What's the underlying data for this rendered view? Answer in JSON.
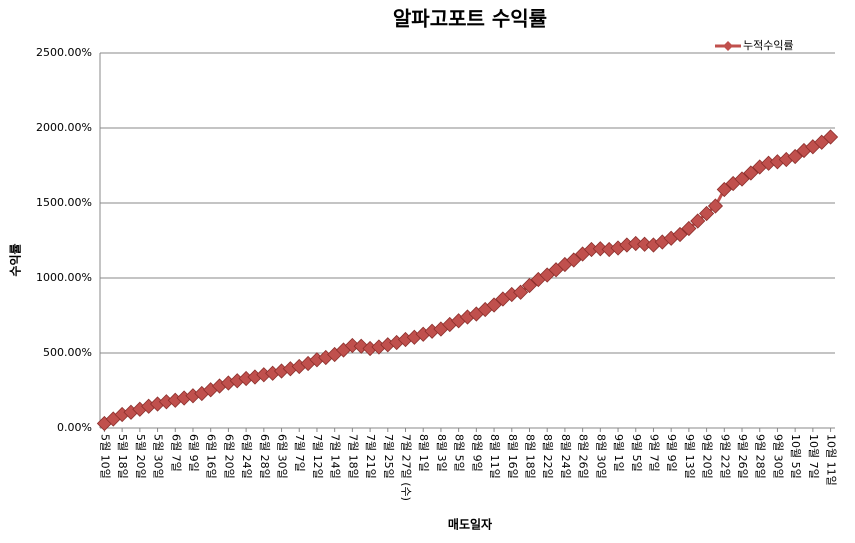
{
  "chart_data": {
    "type": "line",
    "title": "알파고포트 수익률",
    "x_label": "매도일자",
    "y_label": "수익률",
    "categories": [
      "5월 10일",
      null,
      "5월 18일",
      null,
      "5월 20일",
      null,
      "5월 30일",
      null,
      "6월 7일",
      null,
      "6월 9일",
      null,
      "6월 16일",
      null,
      "6월 20일",
      null,
      "6월 24일",
      null,
      "6월 28일",
      null,
      "6월 30일",
      null,
      "7월 7일",
      null,
      "7월 12일",
      null,
      "7월 14일",
      null,
      "7월 18일",
      null,
      "7월 21일",
      null,
      "7월 25일",
      null,
      "7월 27일 (수)",
      null,
      "8월 1일",
      null,
      "8월 3일",
      null,
      "8월 5일",
      null,
      "8월 9일",
      null,
      "8월 11일",
      null,
      "8월 16일",
      null,
      "8월 18일",
      null,
      "8월 22일",
      null,
      "8월 24일",
      null,
      "8월 26일",
      null,
      "8월 30일",
      null,
      "9월 1일",
      null,
      "9월 5일",
      null,
      "9월 7일",
      null,
      "9월 9일",
      null,
      "9월 13일",
      null,
      "9월 20일",
      null,
      "9월 22일",
      null,
      "9월 26일",
      null,
      "9월 28일",
      null,
      "9월 30일",
      null,
      "10월 5일",
      null,
      "10월 7일",
      null,
      "10월 11일"
    ],
    "series": [
      {
        "name": "누적수익률",
        "color": "#c0504d",
        "values": [
          30,
          60,
          90,
          105,
          125,
          145,
          160,
          175,
          185,
          200,
          215,
          230,
          255,
          280,
          300,
          315,
          330,
          340,
          355,
          365,
          380,
          395,
          410,
          430,
          455,
          470,
          490,
          520,
          550,
          545,
          530,
          540,
          555,
          570,
          590,
          605,
          625,
          645,
          660,
          690,
          715,
          740,
          760,
          790,
          820,
          860,
          890,
          905,
          950,
          990,
          1020,
          1055,
          1090,
          1120,
          1160,
          1190,
          1195,
          1190,
          1200,
          1220,
          1230,
          1225,
          1220,
          1240,
          1265,
          1290,
          1330,
          1380,
          1430,
          1480,
          1590,
          1630,
          1660,
          1700,
          1740,
          1765,
          1775,
          1790,
          1810,
          1850,
          1875,
          1905,
          1940
        ]
      }
    ],
    "ylim": [
      0,
      2500
    ],
    "yticks": [
      {
        "value": 0,
        "label": "0.00%"
      },
      {
        "value": 500,
        "label": "500.00%"
      },
      {
        "value": 1000,
        "label": "1000.00%"
      },
      {
        "value": 1500,
        "label": "1500.00%"
      },
      {
        "value": 2000,
        "label": "2000.00%"
      },
      {
        "value": 2500,
        "label": "2500.00%"
      }
    ],
    "grid": true,
    "legend": "top-right"
  }
}
